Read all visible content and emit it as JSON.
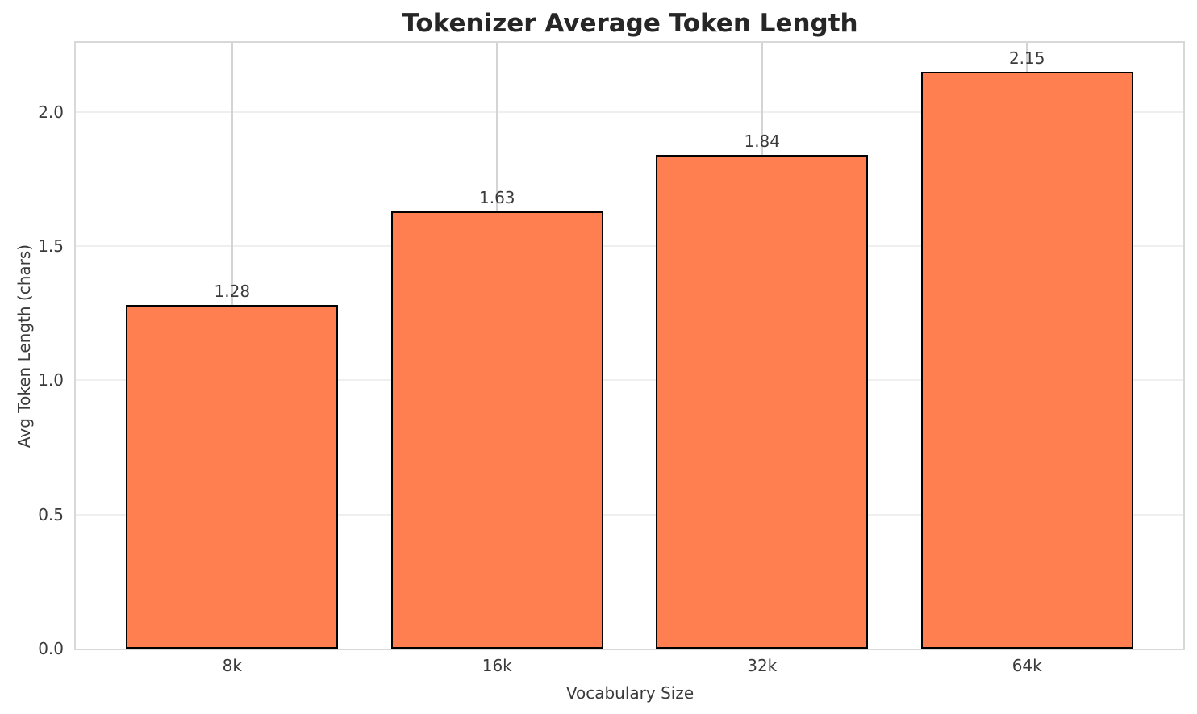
{
  "chart_data": {
    "type": "bar",
    "title": "Tokenizer Average Token Length",
    "xlabel": "Vocabulary Size",
    "ylabel": "Avg Token Length (chars)",
    "categories": [
      "8k",
      "16k",
      "32k",
      "64k"
    ],
    "values": [
      1.28,
      1.63,
      1.84,
      2.15
    ],
    "value_labels": [
      "1.28",
      "1.63",
      "1.84",
      "2.15"
    ],
    "yticks": [
      0.0,
      0.5,
      1.0,
      1.5,
      2.0
    ],
    "ytick_labels": [
      "0.0",
      "0.5",
      "1.0",
      "1.5",
      "2.0"
    ],
    "ylim": [
      0,
      2.2575
    ],
    "bar_width_fraction": 0.8,
    "x_margin_units": 0.59,
    "grid": true,
    "legend_position": "none",
    "colors": {
      "bar_fill": "#FF7F50",
      "bar_edge": "#000000",
      "grid_horizontal": "#efefef",
      "grid_vertical": "#d4d4d4",
      "spine": "#d8d8d8",
      "title_text": "#262626",
      "axis_text": "#3a3a3a",
      "background": "#ffffff"
    }
  }
}
